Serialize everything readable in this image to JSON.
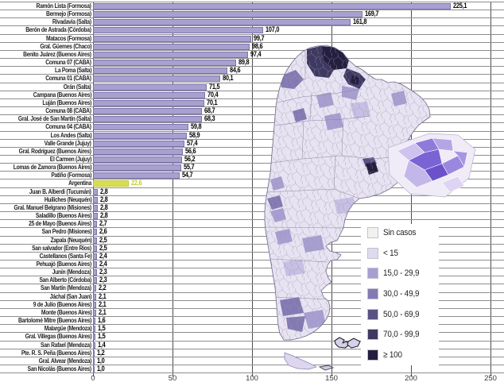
{
  "chart_data": {
    "type": "bar",
    "orientation": "horizontal",
    "title": "",
    "xlabel": "",
    "ylabel": "",
    "xlim": [
      0,
      250
    ],
    "x_ticks": [
      0,
      50,
      100,
      150,
      200,
      250
    ],
    "grid": true,
    "bar_color": "#a8a0d0",
    "highlight_color": "#d8de4d",
    "entries": [
      {
        "label": "Ramón Lista (Formosa)",
        "value": 225.1,
        "display": "225,1"
      },
      {
        "label": "Bermejo (Formosa)",
        "value": 169.7,
        "display": "169,7"
      },
      {
        "label": "Rivadavia (Salta)",
        "value": 161.8,
        "display": "161,8"
      },
      {
        "label": "Berón de Astrada (Córdoba)",
        "value": 107.0,
        "display": "107,0"
      },
      {
        "label": "Matacos (Formosa)",
        "value": 99.7,
        "display": "99,7"
      },
      {
        "label": "Gral. Güemes (Chaco)",
        "value": 98.6,
        "display": "98,6"
      },
      {
        "label": "Benito Juárez (Buenos Aires)",
        "value": 97.4,
        "display": "97,4"
      },
      {
        "label": "Comuna 07 (CABA)",
        "value": 89.8,
        "display": "89,8"
      },
      {
        "label": "La Poma (Salta)",
        "value": 84.6,
        "display": "84,6"
      },
      {
        "label": "Comuna 01 (CABA)",
        "value": 80.1,
        "display": "80,1"
      },
      {
        "label": "Orán (Salta)",
        "value": 71.5,
        "display": "71,5"
      },
      {
        "label": "Campana (Buenos Aires)",
        "value": 70.4,
        "display": "70,4"
      },
      {
        "label": "Luján (Buenos Aires)",
        "value": 70.1,
        "display": "70,1"
      },
      {
        "label": "Comuna 08 (CABA)",
        "value": 68.7,
        "display": "68,7"
      },
      {
        "label": "Gral. José de San Martín (Salta)",
        "value": 68.3,
        "display": "68,3"
      },
      {
        "label": "Comuna 04 (CABA)",
        "value": 59.8,
        "display": "59,8"
      },
      {
        "label": "Los Andes (Salta)",
        "value": 58.9,
        "display": "58,9"
      },
      {
        "label": "Valle Grande (Jujuy)",
        "value": 57.4,
        "display": "57,4"
      },
      {
        "label": "Gral. Rodríguez (Buenos Aires)",
        "value": 56.6,
        "display": "56,6"
      },
      {
        "label": "El Carmen (Jujuy)",
        "value": 56.2,
        "display": "56,2"
      },
      {
        "label": "Lomas de Zamora (Buenos Aires)",
        "value": 55.7,
        "display": "55,7"
      },
      {
        "label": "Patiño (Formosa)",
        "value": 54.7,
        "display": "54,7"
      },
      {
        "label": "Argentina",
        "value": 22.6,
        "display": "22,6",
        "highlight": true
      },
      {
        "label": "Juan B. Alberdi (Tucumán)",
        "value": 2.8,
        "display": "2,8"
      },
      {
        "label": "Huiliches (Neuquén)",
        "value": 2.8,
        "display": "2,8"
      },
      {
        "label": "Gral. Manuel Belgrano (Misiones)",
        "value": 2.8,
        "display": "2,8"
      },
      {
        "label": "Saladillo (Buenos Aires)",
        "value": 2.8,
        "display": "2,8"
      },
      {
        "label": "25 de Mayo (Buenos Aires)",
        "value": 2.7,
        "display": "2,7"
      },
      {
        "label": "San Pedro (Misiones)",
        "value": 2.6,
        "display": "2,6"
      },
      {
        "label": "Zapala (Neuquén)",
        "value": 2.5,
        "display": "2,5"
      },
      {
        "label": "San salvador (Entre Ríos)",
        "value": 2.5,
        "display": "2,5"
      },
      {
        "label": "Castellanos (Santa Fe)",
        "value": 2.4,
        "display": "2,4"
      },
      {
        "label": "Pehuajó (Buenos Aires)",
        "value": 2.4,
        "display": "2,4"
      },
      {
        "label": "Junín (Mendoza)",
        "value": 2.3,
        "display": "2,3"
      },
      {
        "label": "San Alberto (Córdoba)",
        "value": 2.3,
        "display": "2,3"
      },
      {
        "label": "San Martín (Mendoza)",
        "value": 2.2,
        "display": "2,2"
      },
      {
        "label": "Jáchal (San Juan)",
        "value": 2.1,
        "display": "2,1"
      },
      {
        "label": "9 de Julio (Buenos Aires)",
        "value": 2.1,
        "display": "2,1"
      },
      {
        "label": "Monte (Buenos Aires)",
        "value": 2.1,
        "display": "2,1"
      },
      {
        "label": "Bartolomé Mitre (Buenos Aires)",
        "value": 1.6,
        "display": "1,6"
      },
      {
        "label": "Malargüe (Mendoza)",
        "value": 1.5,
        "display": "1,5"
      },
      {
        "label": "Gral. Villegas (Buenos Aires)",
        "value": 1.5,
        "display": "1,5"
      },
      {
        "label": "San Rafael (Mendoza)",
        "value": 1.4,
        "display": "1,4"
      },
      {
        "label": "Pte. R. S. Peña (Buenos Aires)",
        "value": 1.2,
        "display": "1,2"
      },
      {
        "label": "Gral. Alvear (Mendoza)",
        "value": 1.0,
        "display": "1,0"
      },
      {
        "label": "San Nicolás (Buenos Aires)",
        "value": 1.0,
        "display": "1,0"
      }
    ],
    "map": {
      "region": "Argentina departments choropleth with metropolitan inset",
      "legend": [
        {
          "label": "Sin casos",
          "color": "#f2f1ee"
        },
        {
          "label": "< 15",
          "color": "#dfdaee"
        },
        {
          "label": "15,0 - 29,9",
          "color": "#a79fd1"
        },
        {
          "label": "30,0 - 49,9",
          "color": "#837ab3"
        },
        {
          "label": "50,0 - 69,9",
          "color": "#5a5183"
        },
        {
          "label": "70,0 - 99,9",
          "color": "#3e3961"
        },
        {
          "label": "≥ 100",
          "color": "#241e3f"
        }
      ]
    }
  }
}
